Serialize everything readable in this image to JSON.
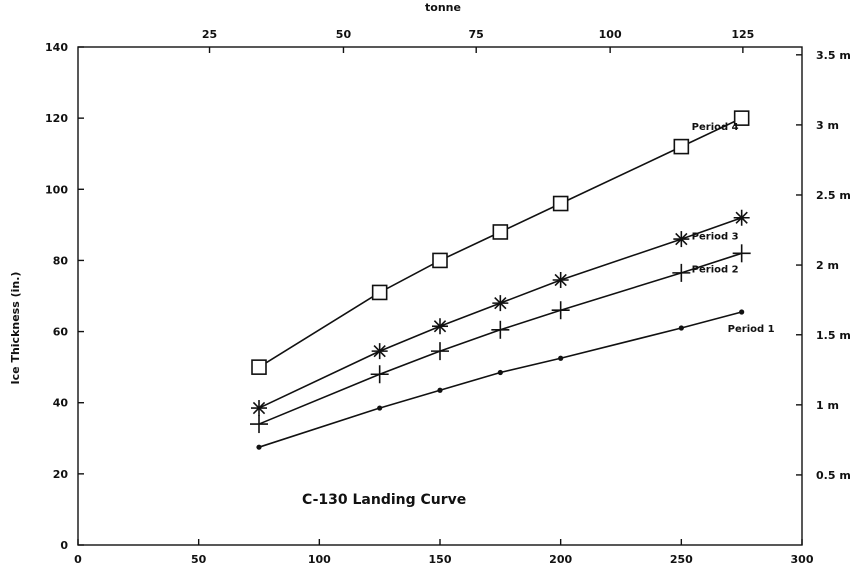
{
  "chart_data": {
    "type": "line",
    "title": "",
    "annotation": "C-130 Landing Curve",
    "xlabel": "",
    "ylabel": "Ice Thickness (in.)",
    "xlim": [
      0,
      300
    ],
    "ylim": [
      0,
      140
    ],
    "x_ticks": [
      0,
      50,
      100,
      150,
      200,
      250,
      300
    ],
    "y_ticks": [
      0,
      20,
      40,
      60,
      80,
      100,
      120,
      140
    ],
    "secondary_x_axis": {
      "label": "tonne",
      "position": "top",
      "ticks": [
        {
          "label": "25",
          "x": 54.5
        },
        {
          "label": "50",
          "x": 110
        },
        {
          "label": "75",
          "x": 165
        },
        {
          "label": "100",
          "x": 220.5
        },
        {
          "label": "125",
          "x": 275.5
        }
      ]
    },
    "secondary_y_axis": {
      "position": "right",
      "ticks": [
        {
          "label": "0.5 m",
          "y": 19.7
        },
        {
          "label": "1 m",
          "y": 39.4
        },
        {
          "label": "1.5 m",
          "y": 59.1
        },
        {
          "label": "2 m",
          "y": 78.7
        },
        {
          "label": "2.5 m",
          "y": 98.4
        },
        {
          "label": "3 m",
          "y": 118.1
        },
        {
          "label": "3.5 m",
          "y": 137.8
        }
      ]
    },
    "grid": false,
    "legend": "inline labels at right end of each series",
    "series": [
      {
        "name": "Period 4",
        "marker": "square",
        "x": [
          75,
          125,
          150,
          175,
          200,
          250,
          275
        ],
        "values": [
          50,
          71,
          80,
          88,
          96,
          112,
          120
        ]
      },
      {
        "name": "Period 3",
        "marker": "asterisk",
        "x": [
          75,
          125,
          150,
          175,
          200,
          250,
          275
        ],
        "values": [
          38.5,
          54.5,
          61.5,
          68,
          74.5,
          86,
          92
        ]
      },
      {
        "name": "Period 2",
        "marker": "plus",
        "x": [
          75,
          125,
          150,
          175,
          200,
          250,
          275
        ],
        "values": [
          34,
          48,
          54.5,
          60.5,
          66,
          76.5,
          82
        ]
      },
      {
        "name": "Period 1",
        "marker": "dot",
        "x": [
          75,
          125,
          150,
          175,
          200,
          250,
          275
        ],
        "values": [
          27.5,
          38.5,
          43.5,
          48.5,
          52.5,
          61,
          65.5
        ]
      }
    ]
  }
}
